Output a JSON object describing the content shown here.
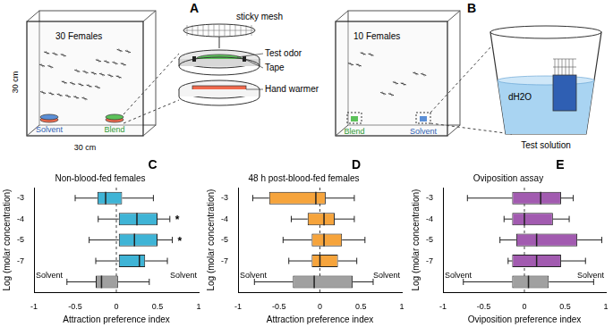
{
  "figure": {
    "A": {
      "label": "A",
      "cage": "30 Females",
      "traps": [
        "Solvent",
        "Blend"
      ],
      "dimensions": [
        "30 cm",
        "30 cm"
      ],
      "parts": {
        "mesh": "sticky mesh",
        "odor": "Test odor",
        "tape": "Tape",
        "warmer": "Hand warmer"
      }
    },
    "B": {
      "label": "B",
      "cage": "10 Females",
      "cups": [
        "Blend",
        "Solvent"
      ],
      "parts": {
        "water": "dH2O",
        "solution": "Test solution"
      }
    }
  },
  "chart_data": [
    {
      "panel": "C",
      "type": "box",
      "title": "Non-blood-fed females",
      "xlabel": "Attraction preference index",
      "ylabel": "Log (molar concentration)",
      "orientation": "horizontal",
      "grid": false,
      "categories": [
        "-3",
        "-4",
        "-5",
        "-7",
        null
      ],
      "min": [
        -0.5,
        -0.22,
        -0.33,
        -0.25,
        -0.6
      ],
      "q1": [
        -0.23,
        0.03,
        0.03,
        0.03,
        -0.25
      ],
      "median": [
        -0.13,
        0.25,
        0.22,
        0.28,
        -0.18
      ],
      "q3": [
        0.07,
        0.5,
        0.5,
        0.35,
        0.02
      ],
      "max": [
        0.45,
        0.65,
        0.68,
        0.62,
        0.4
      ],
      "colors": [
        "#3fb4d6",
        "#3fb4d6",
        "#3fb4d6",
        "#3fb4d6",
        "#a0a0a0"
      ],
      "significance": [
        null,
        "*",
        "*",
        null,
        null
      ],
      "solvent_labels": [
        "Solvent",
        "Solvent"
      ],
      "reference_x": 0,
      "xlim": [
        -1,
        1
      ],
      "xticks": [
        -1,
        -0.5,
        0,
        0.5,
        1
      ]
    },
    {
      "panel": "D",
      "type": "box",
      "title": "48 h post-blood-fed females",
      "xlabel": "Attraction preference index",
      "ylabel": "Log (molar concentration)",
      "orientation": "horizontal",
      "grid": false,
      "categories": [
        "-3",
        "-4",
        "-5",
        "-7",
        null
      ],
      "min": [
        -0.82,
        -0.35,
        -0.45,
        -0.38,
        -0.8
      ],
      "q1": [
        -0.62,
        -0.15,
        -0.1,
        -0.1,
        -0.33
      ],
      "median": [
        -0.05,
        0.05,
        0.05,
        0.0,
        -0.07
      ],
      "q3": [
        0.07,
        0.18,
        0.27,
        0.22,
        0.4
      ],
      "max": [
        0.42,
        0.42,
        0.55,
        0.45,
        0.65
      ],
      "colors": [
        "#f6a43c",
        "#f6a43c",
        "#f6a43c",
        "#f6a43c",
        "#a0a0a0"
      ],
      "significance": [
        null,
        null,
        null,
        null,
        null
      ],
      "solvent_labels": [
        "Solvent",
        "Solvent"
      ],
      "reference_x": 0,
      "xlim": [
        -1,
        1
      ],
      "xticks": [
        -1,
        -0.5,
        0,
        0.5,
        1
      ]
    },
    {
      "panel": "E",
      "type": "box",
      "title": "Oviposition assay",
      "xlabel": "Oviposition preference index",
      "ylabel": "Log (molar concentration)",
      "orientation": "horizontal",
      "grid": false,
      "categories": [
        "-3",
        "-4",
        "-5",
        "-7",
        null
      ],
      "min": [
        -0.7,
        -0.25,
        -0.3,
        -0.2,
        -0.75
      ],
      "q1": [
        -0.15,
        -0.15,
        -0.1,
        -0.15,
        -0.15
      ],
      "median": [
        0.2,
        0.0,
        0.15,
        0.15,
        0.05
      ],
      "q3": [
        0.45,
        0.35,
        0.65,
        0.45,
        0.3
      ],
      "max": [
        0.6,
        0.55,
        0.95,
        0.75,
        0.85
      ],
      "colors": [
        "#a25bb0",
        "#a25bb0",
        "#a25bb0",
        "#a25bb0",
        "#a0a0a0"
      ],
      "significance": [
        null,
        null,
        null,
        null,
        null
      ],
      "solvent_labels": [
        "Solvent",
        "Solvent"
      ],
      "reference_x": 0,
      "xlim": [
        -1,
        1
      ],
      "xticks": [
        -1,
        -0.5,
        0,
        0.5,
        1
      ]
    }
  ]
}
